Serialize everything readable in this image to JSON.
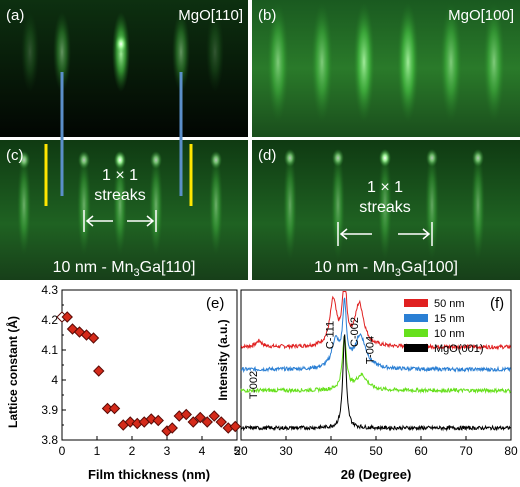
{
  "panels": {
    "a": {
      "tag": "(a)",
      "label": "MgO[110]"
    },
    "b": {
      "tag": "(b)",
      "label": "MgO[100]"
    },
    "c": {
      "tag": "(c)",
      "streak_line1": "1 × 1",
      "streak_line2": "streaks",
      "caption_prefix": "10 nm - Mn",
      "caption_sub": "3",
      "caption_suffix": "Ga[110]"
    },
    "d": {
      "tag": "(d)",
      "streak_line1": "1 × 1",
      "streak_line2": "streaks",
      "caption_prefix": "10 nm - Mn",
      "caption_sub": "3",
      "caption_suffix": "Ga[100]"
    }
  },
  "colors": {
    "rheed_green": "#3cd23c",
    "marker_blue": "#5b8fc9",
    "marker_yellow": "#ffe600",
    "diamond_fill": "#d42a1a"
  },
  "chart_data": [
    {
      "type": "scatter",
      "tag": "(e)",
      "xlabel": "Film thickness (nm)",
      "ylabel": "Lattice constant (Å)",
      "xlim": [
        0,
        5
      ],
      "ylim": [
        3.8,
        4.3
      ],
      "xticks": [
        "0",
        "1",
        "2",
        "3",
        "4",
        "5"
      ],
      "yticks": [
        "3.8",
        "3.85",
        "3.9",
        "3.95",
        "4",
        "4.05",
        "4.1",
        "4.15",
        "4.2",
        "4.25",
        "4.3"
      ],
      "grid": false,
      "points": [
        {
          "x": 0.0,
          "y": 4.21
        },
        {
          "x": 0.15,
          "y": 4.21
        },
        {
          "x": 0.3,
          "y": 4.17
        },
        {
          "x": 0.5,
          "y": 4.16
        },
        {
          "x": 0.7,
          "y": 4.15
        },
        {
          "x": 0.9,
          "y": 4.14
        },
        {
          "x": 1.05,
          "y": 4.03
        },
        {
          "x": 1.3,
          "y": 3.905
        },
        {
          "x": 1.5,
          "y": 3.905
        },
        {
          "x": 1.75,
          "y": 3.85
        },
        {
          "x": 1.95,
          "y": 3.86
        },
        {
          "x": 2.15,
          "y": 3.855
        },
        {
          "x": 2.35,
          "y": 3.86
        },
        {
          "x": 2.55,
          "y": 3.87
        },
        {
          "x": 2.75,
          "y": 3.865
        },
        {
          "x": 3.0,
          "y": 3.83
        },
        {
          "x": 3.15,
          "y": 3.84
        },
        {
          "x": 3.35,
          "y": 3.88
        },
        {
          "x": 3.55,
          "y": 3.885
        },
        {
          "x": 3.75,
          "y": 3.86
        },
        {
          "x": 3.95,
          "y": 3.875
        },
        {
          "x": 4.15,
          "y": 3.86
        },
        {
          "x": 4.35,
          "y": 3.88
        },
        {
          "x": 4.55,
          "y": 3.86
        },
        {
          "x": 4.75,
          "y": 3.84
        },
        {
          "x": 4.95,
          "y": 3.845
        }
      ]
    },
    {
      "type": "line",
      "tag": "(f)",
      "xlabel": "2θ (Degree)",
      "ylabel": "Intensity (a.u.)",
      "xlim": [
        20,
        80
      ],
      "xticks": [
        "20",
        "30",
        "40",
        "50",
        "60",
        "70",
        "80"
      ],
      "yticks": [],
      "grid": false,
      "legend_position": "top-right",
      "annotations": [
        {
          "text": "T-002",
          "x": 24
        },
        {
          "text": "C-111",
          "x": 40.5
        },
        {
          "text": "C-002",
          "x": 46
        },
        {
          "text": "T-004",
          "x": 49
        }
      ],
      "series": [
        {
          "name": "50 nm",
          "color": "#e02020",
          "baseline": 0.62,
          "peaks": [
            {
              "x": 24,
              "h": 0.04,
              "w": 0.8
            },
            {
              "x": 40.5,
              "h": 0.3,
              "w": 0.9
            },
            {
              "x": 43,
              "h": 0.45,
              "w": 0.5
            },
            {
              "x": 46.3,
              "h": 0.28,
              "w": 1.2
            }
          ]
        },
        {
          "name": "15 nm",
          "color": "#2a7fd4",
          "baseline": 0.47,
          "peaks": [
            {
              "x": 41,
              "h": 0.18,
              "w": 1.0
            },
            {
              "x": 43,
              "h": 0.4,
              "w": 0.5
            },
            {
              "x": 46.5,
              "h": 0.22,
              "w": 1.5
            }
          ]
        },
        {
          "name": "10 nm",
          "color": "#66e01c",
          "baseline": 0.33,
          "peaks": [
            {
              "x": 43,
              "h": 0.35,
              "w": 0.55
            },
            {
              "x": 46.8,
              "h": 0.1,
              "w": 1.5
            }
          ]
        },
        {
          "name": "MgO(001)",
          "color": "#000000",
          "baseline": 0.08,
          "peaks": [
            {
              "x": 43,
              "h": 0.62,
              "w": 0.45
            }
          ]
        }
      ]
    }
  ]
}
